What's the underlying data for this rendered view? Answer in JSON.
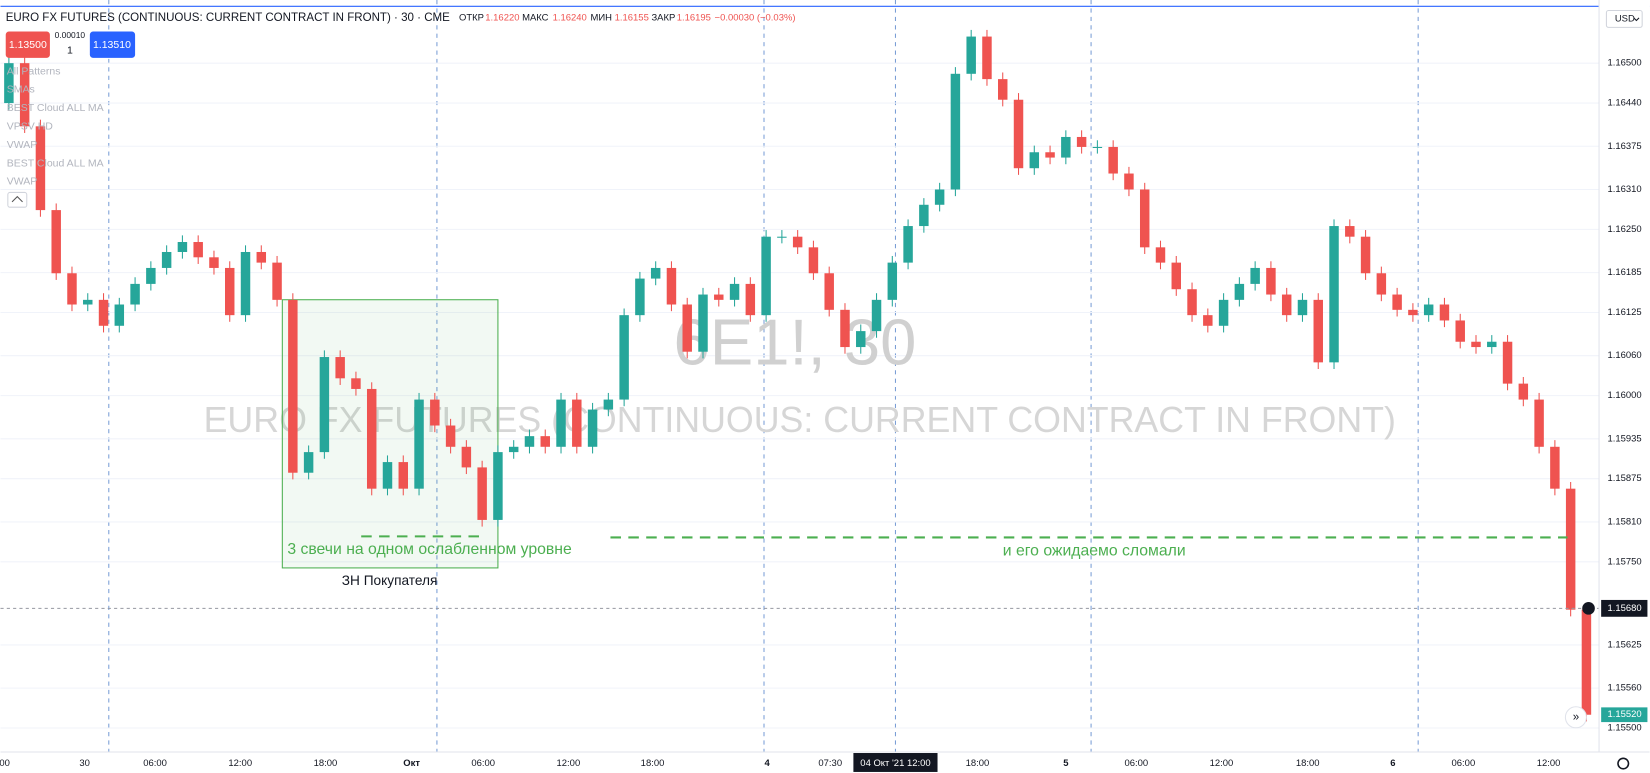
{
  "chart_data": {
    "type": "candlestick",
    "title": "EURO FX FUTURES (CONTINUOUS: CURRENT CONTRACT IN FRONT) · 30 · CME",
    "legend": {
      "open_label": "ОТКР",
      "open": "1.16220",
      "high_label": "МАКС",
      "high": "1.16240",
      "low_label": "МИН",
      "low": "1.16155",
      "close_label": "ЗАКР",
      "close": "1.16195",
      "change": "−0.00030 (−0.03%)"
    },
    "watermark": "6E1!, 30",
    "watermark_sub": "EURO FX FUTURES (CONTINUOUS: CURRENT CONTRACT IN FRONT)",
    "up_color": "#26a69a",
    "down_color": "#ef5350",
    "open": [
      1.1644,
      1.165,
      1.16405,
      1.16279,
      1.16184,
      1.16137,
      1.16144,
      1.16105,
      1.16137,
      1.16168,
      1.16192,
      1.16216,
      1.16231,
      1.16208,
      1.16192,
      1.16121,
      1.16216,
      1.162,
      1.16144,
      1.15884,
      1.15915,
      1.16058,
      1.16026,
      1.1601,
      1.1586,
      1.159,
      1.1586,
      1.15994,
      1.15955,
      1.15923,
      1.15892,
      1.15813,
      1.15915,
      1.15923,
      1.15939,
      1.15923,
      1.15994,
      1.15923,
      1.15979,
      1.15994,
      1.16121,
      1.16176,
      1.16192,
      1.16137,
      1.16066,
      1.16152,
      1.16144,
      1.16168,
      1.16121,
      1.16239,
      1.16239,
      1.16223,
      1.16184,
      1.16129,
      1.16073,
      1.16097,
      1.16144,
      1.162,
      1.16255,
      1.16287,
      1.1631,
      1.16484,
      1.1654,
      1.16476,
      1.16445,
      1.16342,
      1.16366,
      1.16358,
      1.16389,
      1.16374,
      1.16374,
      1.16334,
      1.1631,
      1.16223,
      1.162,
      1.1616,
      1.16121,
      1.16105,
      1.16144,
      1.16168,
      1.16192,
      1.16152,
      1.16121,
      1.16144,
      1.1605,
      1.16255,
      1.16239,
      1.16184,
      1.16152,
      1.16129,
      1.16121,
      1.16137,
      1.16113,
      1.16081,
      1.16073,
      1.16081,
      1.16018,
      1.15994,
      1.15923,
      1.1586,
      1.15678
    ],
    "high": [
      1.1651,
      1.1651,
      1.16415,
      1.16289,
      1.16194,
      1.16154,
      1.16154,
      1.16147,
      1.16178,
      1.16202,
      1.16226,
      1.16241,
      1.16241,
      1.16218,
      1.16202,
      1.16226,
      1.16226,
      1.1621,
      1.16154,
      1.15925,
      1.16068,
      1.16068,
      1.16036,
      1.1602,
      1.1591,
      1.1591,
      1.16004,
      1.16004,
      1.15965,
      1.15933,
      1.15902,
      1.15925,
      1.15933,
      1.15949,
      1.15949,
      1.16004,
      1.16004,
      1.15989,
      1.16004,
      1.16131,
      1.16186,
      1.16202,
      1.16202,
      1.16147,
      1.16162,
      1.16162,
      1.16178,
      1.16178,
      1.16249,
      1.16249,
      1.16249,
      1.16233,
      1.16194,
      1.16139,
      1.16107,
      1.16154,
      1.1621,
      1.16265,
      1.16297,
      1.1632,
      1.16494,
      1.1655,
      1.1655,
      1.16486,
      1.16455,
      1.16376,
      1.16376,
      1.16399,
      1.16399,
      1.16384,
      1.16384,
      1.16344,
      1.1632,
      1.16233,
      1.1621,
      1.1617,
      1.16131,
      1.16154,
      1.16178,
      1.16202,
      1.16202,
      1.16162,
      1.16154,
      1.16154,
      1.16265,
      1.16265,
      1.16249,
      1.16194,
      1.16162,
      1.16139,
      1.16147,
      1.16147,
      1.16123,
      1.16091,
      1.16091,
      1.16091,
      1.16028,
      1.16004,
      1.15933,
      1.1587,
      1.15688
    ],
    "low": [
      1.1643,
      1.16395,
      1.16269,
      1.16174,
      1.16127,
      1.16127,
      1.16095,
      1.16095,
      1.16127,
      1.16158,
      1.16182,
      1.16206,
      1.16198,
      1.16182,
      1.16111,
      1.16111,
      1.1619,
      1.16134,
      1.15874,
      1.15874,
      1.15905,
      1.16016,
      1.16,
      1.1585,
      1.1585,
      1.1585,
      1.1585,
      1.15945,
      1.15913,
      1.15882,
      1.15803,
      1.15803,
      1.15905,
      1.15913,
      1.15913,
      1.15913,
      1.15913,
      1.15913,
      1.15969,
      1.15984,
      1.16111,
      1.16166,
      1.16127,
      1.16056,
      1.16056,
      1.16134,
      1.16134,
      1.16111,
      1.16111,
      1.16229,
      1.16213,
      1.16174,
      1.16119,
      1.16063,
      1.16063,
      1.16087,
      1.16134,
      1.1619,
      1.16245,
      1.16277,
      1.163,
      1.16474,
      1.16466,
      1.16435,
      1.16332,
      1.16332,
      1.16348,
      1.16348,
      1.16364,
      1.16364,
      1.16324,
      1.163,
      1.16213,
      1.1619,
      1.1615,
      1.16111,
      1.16095,
      1.16095,
      1.16134,
      1.16158,
      1.16142,
      1.16111,
      1.16111,
      1.1604,
      1.1604,
      1.16229,
      1.16174,
      1.16142,
      1.16119,
      1.16111,
      1.16111,
      1.16103,
      1.16071,
      1.16063,
      1.16063,
      1.16008,
      1.15984,
      1.15913,
      1.1585,
      1.15668,
      1.1551
    ],
    "close": [
      1.165,
      1.16405,
      1.16279,
      1.16184,
      1.16137,
      1.16144,
      1.16105,
      1.16137,
      1.16168,
      1.16192,
      1.16216,
      1.16231,
      1.16208,
      1.16192,
      1.16121,
      1.16216,
      1.162,
      1.16144,
      1.15884,
      1.15915,
      1.16058,
      1.16026,
      1.1601,
      1.1586,
      1.159,
      1.1586,
      1.15994,
      1.15955,
      1.15923,
      1.15892,
      1.15813,
      1.15915,
      1.15923,
      1.15939,
      1.15923,
      1.15994,
      1.15923,
      1.15979,
      1.15994,
      1.16121,
      1.16176,
      1.16192,
      1.16137,
      1.16066,
      1.16152,
      1.16144,
      1.16168,
      1.16121,
      1.16239,
      1.16239,
      1.16223,
      1.16184,
      1.16129,
      1.16073,
      1.16097,
      1.16144,
      1.162,
      1.16255,
      1.16287,
      1.1631,
      1.16484,
      1.1654,
      1.16476,
      1.16445,
      1.16342,
      1.16366,
      1.16358,
      1.16389,
      1.16374,
      1.16374,
      1.16334,
      1.1631,
      1.16223,
      1.162,
      1.1616,
      1.16121,
      1.16105,
      1.16144,
      1.16168,
      1.16192,
      1.16152,
      1.16121,
      1.16144,
      1.1605,
      1.16255,
      1.16239,
      1.16184,
      1.16152,
      1.16129,
      1.16121,
      1.16137,
      1.16113,
      1.16081,
      1.16073,
      1.16081,
      1.16018,
      1.15994,
      1.15923,
      1.1586,
      1.15678,
      1.1552
    ],
    "ylim": [
      1.15464,
      1.16595
    ],
    "yticks": [
      {
        "value": 1.165,
        "label": "1.16500"
      },
      {
        "value": 1.1644,
        "label": "1.16440"
      },
      {
        "value": 1.16375,
        "label": "1.16375"
      },
      {
        "value": 1.1631,
        "label": "1.16310"
      },
      {
        "value": 1.1625,
        "label": "1.16250"
      },
      {
        "value": 1.16185,
        "label": "1.16185"
      },
      {
        "value": 1.16125,
        "label": "1.16125"
      },
      {
        "value": 1.1606,
        "label": "1.16060"
      },
      {
        "value": 1.16,
        "label": "1.16000"
      },
      {
        "value": 1.15935,
        "label": "1.15935"
      },
      {
        "value": 1.15875,
        "label": "1.15875"
      },
      {
        "value": 1.1581,
        "label": "1.15810"
      },
      {
        "value": 1.1575,
        "label": "1.15750"
      },
      {
        "value": 1.15625,
        "label": "1.15625"
      },
      {
        "value": 1.1556,
        "label": "1.15560"
      },
      {
        "value": 1.155,
        "label": "1.15500"
      }
    ],
    "crosshair_price": {
      "value": 1.1568,
      "label": "1.15680"
    },
    "last_price": {
      "value": 1.1552,
      "label": "1.15520"
    },
    "currency": "USD",
    "xlabels": [
      "00",
      "30",
      "06:00",
      "12:00",
      "18:00",
      "Окт",
      "06:00",
      "12:00",
      "18:00",
      "4",
      "07:30",
      "18:00",
      "5",
      "06:00",
      "12:00",
      "18:00",
      "6",
      "06:00",
      "12:00"
    ],
    "crosshair_time": "04 Окт '21   12:00",
    "annotations": {
      "left": "3 свечи на одном ослабленном уровне",
      "right": "и его ожидаемо сломали",
      "zone": "ЗН Покупателя"
    }
  },
  "ui": {
    "sell": "1.13500",
    "spread": "0.00010",
    "qty": "1",
    "buy": "1.13510",
    "indicators": [
      "All Patterns",
      "SMAs",
      "BEST Cloud ALL MA",
      "VPSV HD",
      "VWAP",
      "BEST Cloud ALL MA",
      "VWAP"
    ]
  }
}
